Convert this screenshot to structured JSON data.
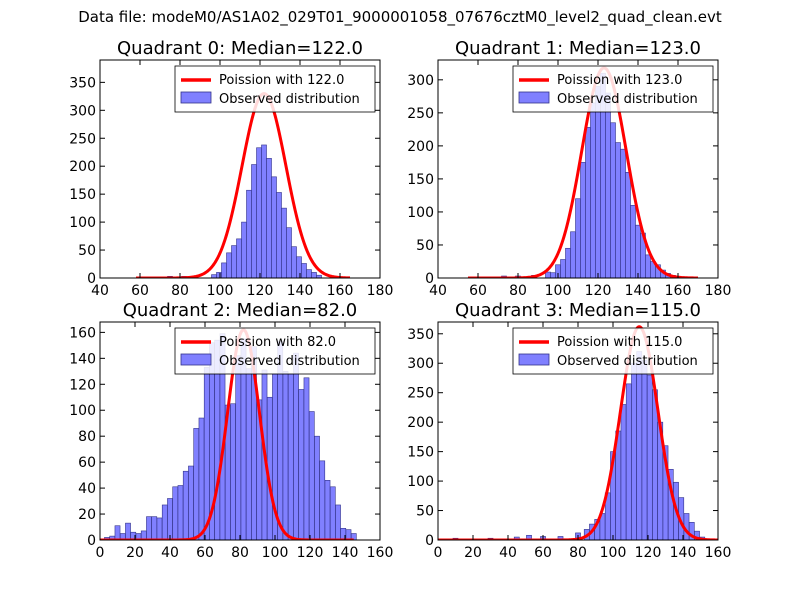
{
  "figure": {
    "suptitle": "Data file: modeM0/AS1A02_029T01_9000001058_07676cztM0_level2_quad_clean.evt"
  },
  "colors": {
    "observed_fill": "#8080ff",
    "observed_edge": "#33338a",
    "poisson_line": "#ff0000"
  },
  "chart_data": [
    {
      "type": "bar",
      "title": "Quadrant 0: Median=122.0",
      "xlim": [
        40,
        180
      ],
      "ylim": [
        0,
        390
      ],
      "xticks": [
        40,
        60,
        80,
        100,
        120,
        140,
        160,
        180
      ],
      "yticks": [
        0,
        50,
        100,
        150,
        200,
        250,
        300,
        350
      ],
      "legend": {
        "location": "top-right",
        "entries": [
          "Poission with 122.0",
          "Observed distribution"
        ]
      },
      "bin_width": 2.5,
      "bins": [
        [
          60,
          2
        ],
        [
          75,
          3
        ],
        [
          82,
          3
        ],
        [
          97,
          6
        ],
        [
          99.5,
          10
        ],
        [
          102,
          27
        ],
        [
          104.5,
          45
        ],
        [
          107,
          58
        ],
        [
          109.5,
          70
        ],
        [
          112,
          100
        ],
        [
          114.5,
          157
        ],
        [
          117,
          203
        ],
        [
          119.5,
          233
        ],
        [
          122,
          238
        ],
        [
          124.5,
          214
        ],
        [
          127,
          181
        ],
        [
          129.5,
          153
        ],
        [
          132,
          125
        ],
        [
          134.5,
          90
        ],
        [
          137,
          56
        ],
        [
          139.5,
          38
        ],
        [
          142,
          26
        ],
        [
          144.5,
          15
        ],
        [
          147,
          10
        ],
        [
          149.5,
          5
        ]
      ],
      "poisson": {
        "mean": 122.0,
        "peak": 330,
        "sigma": 11.0,
        "x_range": [
          58,
          165
        ]
      }
    },
    {
      "type": "bar",
      "title": "Quadrant 1: Median=123.0",
      "xlim": [
        40,
        180
      ],
      "ylim": [
        0,
        330
      ],
      "xticks": [
        40,
        60,
        80,
        100,
        120,
        140,
        160,
        180
      ],
      "yticks": [
        0,
        50,
        100,
        150,
        200,
        250,
        300
      ],
      "legend": {
        "location": "top-right",
        "entries": [
          "Poission with 123.0",
          "Observed distribution"
        ]
      },
      "bin_width": 2.5,
      "bins": [
        [
          73,
          3
        ],
        [
          80,
          3
        ],
        [
          88,
          4
        ],
        [
          95,
          9
        ],
        [
          97.5,
          8
        ],
        [
          100,
          20
        ],
        [
          102.5,
          28
        ],
        [
          105,
          45
        ],
        [
          107.5,
          70
        ],
        [
          110,
          120
        ],
        [
          112.5,
          175
        ],
        [
          115,
          228
        ],
        [
          117.5,
          265
        ],
        [
          120,
          290
        ],
        [
          122.5,
          310
        ],
        [
          125,
          280
        ],
        [
          127.5,
          235
        ],
        [
          130,
          205
        ],
        [
          132.5,
          195
        ],
        [
          135,
          160
        ],
        [
          137.5,
          110
        ],
        [
          140,
          80
        ],
        [
          142.5,
          68
        ],
        [
          145,
          35
        ],
        [
          147.5,
          25
        ],
        [
          150,
          20
        ],
        [
          152.5,
          12
        ],
        [
          155,
          7
        ],
        [
          157.5,
          4
        ]
      ],
      "poisson": {
        "mean": 123.0,
        "peak": 318,
        "sigma": 11.1,
        "x_range": [
          55,
          170
        ]
      }
    },
    {
      "type": "bar",
      "title": "Quadrant 2: Median=82.0",
      "xlim": [
        0,
        160
      ],
      "ylim": [
        0,
        168
      ],
      "xticks": [
        0,
        20,
        40,
        60,
        80,
        100,
        120,
        140,
        160
      ],
      "yticks": [
        0,
        20,
        40,
        60,
        80,
        100,
        120,
        140,
        160
      ],
      "legend": {
        "location": "top-right",
        "entries": [
          "Poission with 82.0",
          "Observed distribution"
        ]
      },
      "bin_width": 2.9,
      "bins": [
        [
          4,
          2
        ],
        [
          7,
          3
        ],
        [
          10,
          11
        ],
        [
          13,
          5
        ],
        [
          16,
          13
        ],
        [
          19,
          6
        ],
        [
          22,
          5
        ],
        [
          25,
          7
        ],
        [
          28,
          18
        ],
        [
          31,
          18
        ],
        [
          34,
          17
        ],
        [
          37,
          27
        ],
        [
          40,
          32
        ],
        [
          43,
          41
        ],
        [
          46,
          42
        ],
        [
          49,
          53
        ],
        [
          52,
          57
        ],
        [
          55,
          86
        ],
        [
          58,
          94
        ],
        [
          61,
          133
        ],
        [
          64,
          152
        ],
        [
          67,
          154
        ],
        [
          70,
          159
        ],
        [
          73,
          104
        ],
        [
          76,
          105
        ],
        [
          79,
          142
        ],
        [
          82,
          155
        ],
        [
          85,
          132
        ],
        [
          88,
          149
        ],
        [
          91,
          108
        ],
        [
          94,
          131
        ],
        [
          97,
          110
        ],
        [
          100,
          128
        ],
        [
          103,
          153
        ],
        [
          106,
          130
        ],
        [
          109,
          128
        ],
        [
          112,
          144
        ],
        [
          115,
          116
        ],
        [
          118,
          125
        ],
        [
          121,
          99
        ],
        [
          124,
          80
        ],
        [
          127,
          61
        ],
        [
          130,
          46
        ],
        [
          133,
          41
        ],
        [
          136,
          27
        ],
        [
          139,
          9
        ],
        [
          142,
          8
        ],
        [
          145,
          5
        ]
      ],
      "poisson": {
        "mean": 82.0,
        "peak": 162,
        "sigma": 9.1,
        "x_range": [
          0,
          145
        ]
      }
    },
    {
      "type": "bar",
      "title": "Quadrant 3: Median=115.0",
      "xlim": [
        0,
        160
      ],
      "ylim": [
        0,
        370
      ],
      "xticks": [
        0,
        20,
        40,
        60,
        80,
        100,
        120,
        140,
        160
      ],
      "yticks": [
        0,
        50,
        100,
        150,
        200,
        250,
        300,
        350
      ],
      "legend": {
        "location": "top-right",
        "entries": [
          "Poission with 115.0",
          "Observed distribution"
        ]
      },
      "bin_width": 2.9,
      "bins": [
        [
          10,
          3
        ],
        [
          20,
          2
        ],
        [
          30,
          3
        ],
        [
          45,
          5
        ],
        [
          52,
          8
        ],
        [
          60,
          6
        ],
        [
          70,
          6
        ],
        [
          80,
          12
        ],
        [
          85,
          18
        ],
        [
          88,
          27
        ],
        [
          91,
          35
        ],
        [
          94,
          45
        ],
        [
          97,
          80
        ],
        [
          100,
          150
        ],
        [
          103,
          185
        ],
        [
          106,
          230
        ],
        [
          109,
          265
        ],
        [
          112,
          300
        ],
        [
          115,
          320
        ],
        [
          118,
          305
        ],
        [
          121,
          280
        ],
        [
          124,
          255
        ],
        [
          127,
          200
        ],
        [
          130,
          160
        ],
        [
          133,
          120
        ],
        [
          136,
          98
        ],
        [
          139,
          72
        ],
        [
          142,
          45
        ],
        [
          145,
          30
        ],
        [
          148,
          15
        ],
        [
          151,
          5
        ]
      ],
      "poisson": {
        "mean": 115.0,
        "peak": 362,
        "sigma": 10.7,
        "x_range": [
          0,
          160
        ]
      }
    }
  ]
}
